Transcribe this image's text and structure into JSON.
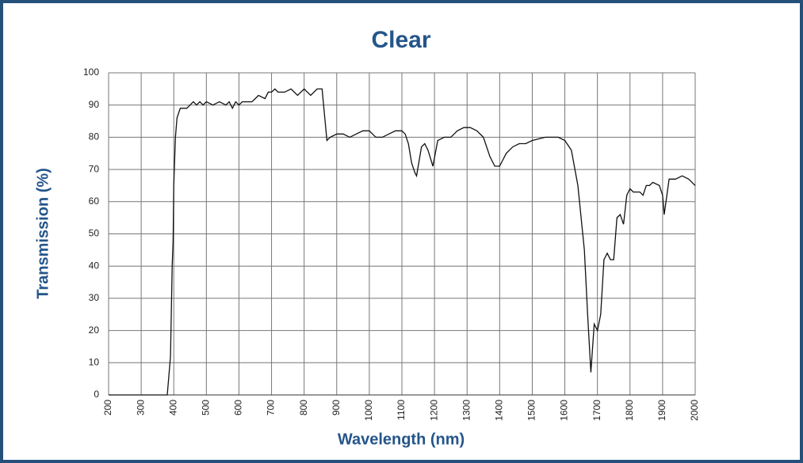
{
  "chart_data": {
    "type": "line",
    "title": "Clear",
    "x_label": "Wavelength (nm)",
    "y_label": "Transmission (%)",
    "x": [
      200,
      380,
      390,
      395,
      398,
      400,
      405,
      410,
      420,
      440,
      450,
      460,
      470,
      480,
      490,
      500,
      520,
      540,
      560,
      570,
      580,
      590,
      600,
      610,
      620,
      640,
      650,
      660,
      680,
      690,
      700,
      710,
      720,
      740,
      760,
      780,
      800,
      820,
      840,
      855,
      870,
      880,
      900,
      920,
      940,
      960,
      980,
      1000,
      1020,
      1040,
      1060,
      1080,
      1100,
      1110,
      1120,
      1130,
      1140,
      1145,
      1160,
      1170,
      1180,
      1195,
      1210,
      1230,
      1250,
      1270,
      1290,
      1310,
      1330,
      1350,
      1370,
      1385,
      1400,
      1420,
      1440,
      1460,
      1480,
      1500,
      1540,
      1580,
      1600,
      1620,
      1640,
      1660,
      1670,
      1680,
      1690,
      1700,
      1710,
      1720,
      1730,
      1740,
      1750,
      1760,
      1770,
      1780,
      1790,
      1800,
      1810,
      1830,
      1840,
      1850,
      1860,
      1870,
      1890,
      1900,
      1905,
      1920,
      1940,
      1960,
      1980,
      2000
    ],
    "values": [
      0,
      0,
      12,
      40,
      48,
      65,
      80,
      86,
      89,
      89,
      90,
      91,
      90,
      91,
      90,
      91,
      90,
      91,
      90,
      91,
      89,
      91,
      90,
      91,
      91,
      91,
      92,
      93,
      92,
      94,
      94,
      95,
      94,
      94,
      95,
      93,
      95,
      93,
      95,
      95,
      79,
      80,
      81,
      81,
      80,
      81,
      82,
      82,
      80,
      80,
      81,
      82,
      82,
      81,
      78,
      72,
      69,
      68,
      77,
      78,
      76,
      71,
      79,
      80,
      80,
      82,
      83,
      83,
      82,
      80,
      74,
      71,
      71,
      75,
      77,
      78,
      78,
      79,
      80,
      80,
      79,
      76,
      65,
      45,
      25,
      7,
      22,
      20,
      25,
      42,
      44,
      42,
      42,
      55,
      56,
      53,
      62,
      64,
      63,
      63,
      62,
      65,
      65,
      66,
      65,
      62,
      56,
      67,
      67,
      68,
      67,
      65
    ],
    "color": "#111111",
    "xlim": [
      200,
      2000
    ],
    "xticks": [
      200,
      300,
      400,
      500,
      600,
      700,
      800,
      900,
      1000,
      1100,
      1200,
      1300,
      1400,
      1500,
      1600,
      1700,
      1800,
      1900,
      2000
    ],
    "ylim": [
      0,
      100
    ],
    "yticks": [
      0,
      10,
      20,
      30,
      40,
      50,
      60,
      70,
      80,
      90,
      100
    ],
    "grid": true
  }
}
